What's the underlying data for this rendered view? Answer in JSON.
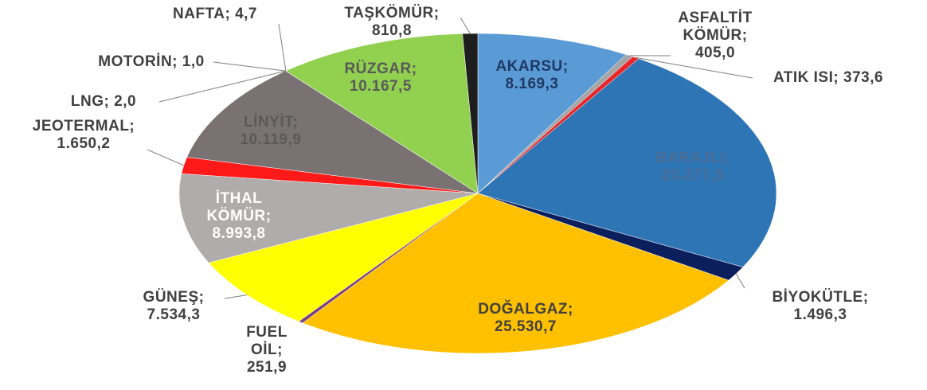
{
  "chart_data": {
    "type": "pie",
    "categories": [
      "AKARSU;",
      "ASFALTİT KÖMÜR;",
      "ATIK ISI;",
      "BARAJLI;",
      "BİYOKÜTLE;",
      "DOĞALGAZ;",
      "FUEL OİL;",
      "GÜNEŞ;",
      "İTHAL KÖMÜR;",
      "JEOTERMAL;",
      "LİNYİT;",
      "LNG;",
      "MOTORİN;",
      "NAFTA;",
      "RÜZGAR;",
      "TAŞKÖMÜR;"
    ],
    "values": [
      8169.3,
      405.0,
      373.6,
      23277.5,
      1496.3,
      25530.7,
      251.9,
      7534.3,
      8993.8,
      1650.2,
      10119.9,
      2.0,
      1.0,
      4.7,
      10167.5,
      810.8
    ],
    "value_labels": [
      "8.169,3",
      "405,0",
      "373,6",
      "23.277,5",
      "1.496,3",
      "25.530,7",
      "251,9",
      "7.534,3",
      "8.993,8",
      "1.650,2",
      "10.119,9",
      "2,0",
      "1,0",
      "4,7",
      "10.167,5",
      "810,8"
    ],
    "colors": [
      "#5b9bd5",
      "#a5a5a5",
      "#e8262a",
      "#2e75b6",
      "#0b1f5c",
      "#ffc000",
      "#7b3f7f",
      "#ffff00",
      "#b1acac",
      "#ff1a1a",
      "#7a7272",
      "#5b9bd5",
      "#ed7d31",
      "#c0c0c0",
      "#92d050",
      "#1e1e1e"
    ]
  }
}
